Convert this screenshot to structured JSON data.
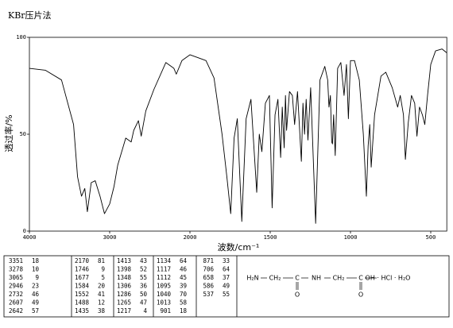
{
  "chart_data": {
    "type": "line",
    "title": "KBr压片法",
    "x_label": "波数/cm⁻¹",
    "y_label": "透过率/%",
    "color": "#000000",
    "x_scale": "ticks-even",
    "xlim": [
      4000,
      400
    ],
    "ylim": [
      0,
      100
    ],
    "xticks": [
      4000,
      3000,
      2000,
      1500,
      1000,
      500
    ],
    "yticks": [
      0,
      50,
      100
    ],
    "x": [
      4000,
      3800,
      3600,
      3450,
      3400,
      3351,
      3310,
      3278,
      3230,
      3180,
      3120,
      3065,
      3000,
      2946,
      2900,
      2800,
      2732,
      2700,
      2642,
      2607,
      2550,
      2450,
      2300,
      2200,
      2170,
      2100,
      2000,
      1900,
      1850,
      1800,
      1770,
      1746,
      1725,
      1705,
      1677,
      1650,
      1620,
      1584,
      1568,
      1552,
      1530,
      1505,
      1488,
      1470,
      1452,
      1435,
      1425,
      1413,
      1405,
      1398,
      1380,
      1362,
      1348,
      1330,
      1306,
      1296,
      1286,
      1276,
      1265,
      1248,
      1217,
      1190,
      1160,
      1142,
      1134,
      1125,
      1117,
      1112,
      1105,
      1095,
      1080,
      1060,
      1040,
      1025,
      1013,
      1000,
      975,
      945,
      920,
      901,
      890,
      880,
      871,
      850,
      810,
      780,
      740,
      706,
      690,
      670,
      658,
      640,
      620,
      600,
      586,
      570,
      552,
      537,
      520,
      500,
      470,
      430,
      400
    ],
    "values": [
      84,
      83,
      78,
      55,
      28,
      18,
      22,
      10,
      25,
      26,
      18,
      9,
      14,
      23,
      34,
      48,
      46,
      52,
      57,
      49,
      62,
      73,
      87,
      84,
      81,
      88,
      91,
      88,
      79,
      50,
      28,
      9,
      48,
      58,
      5,
      58,
      68,
      20,
      50,
      41,
      66,
      70,
      12,
      60,
      68,
      38,
      64,
      43,
      70,
      52,
      72,
      70,
      55,
      72,
      36,
      66,
      50,
      68,
      47,
      74,
      4,
      78,
      85,
      78,
      64,
      70,
      46,
      45,
      60,
      39,
      84,
      87,
      70,
      86,
      58,
      88,
      88,
      78,
      50,
      18,
      44,
      55,
      33,
      60,
      80,
      82,
      74,
      64,
      70,
      60,
      37,
      56,
      70,
      66,
      49,
      64,
      60,
      55,
      70,
      86,
      93,
      94,
      92
    ]
  },
  "peak_table": [
    [
      3351,
      18
    ],
    [
      3278,
      10
    ],
    [
      3065,
      9
    ],
    [
      2946,
      23
    ],
    [
      2732,
      46
    ],
    [
      2607,
      49
    ],
    [
      2642,
      57
    ],
    [
      2170,
      81
    ],
    [
      1746,
      9
    ],
    [
      1677,
      5
    ],
    [
      1584,
      20
    ],
    [
      1552,
      41
    ],
    [
      1488,
      12
    ],
    [
      1435,
      38
    ],
    [
      1413,
      43
    ],
    [
      1398,
      52
    ],
    [
      1348,
      55
    ],
    [
      1306,
      36
    ],
    [
      1286,
      50
    ],
    [
      1265,
      47
    ],
    [
      1217,
      4
    ],
    [
      1134,
      64
    ],
    [
      1117,
      46
    ],
    [
      1112,
      45
    ],
    [
      1095,
      39
    ],
    [
      1040,
      70
    ],
    [
      1013,
      58
    ],
    [
      901,
      18
    ],
    [
      871,
      33
    ],
    [
      706,
      64
    ],
    [
      658,
      37
    ],
    [
      586,
      49
    ],
    [
      537,
      55
    ]
  ],
  "structure": {
    "groups": [
      "H₂N",
      "CH₂",
      "C",
      "NH",
      "CH₂",
      "C",
      "OH · HCl · H₂O"
    ],
    "carbonyl": "O"
  }
}
